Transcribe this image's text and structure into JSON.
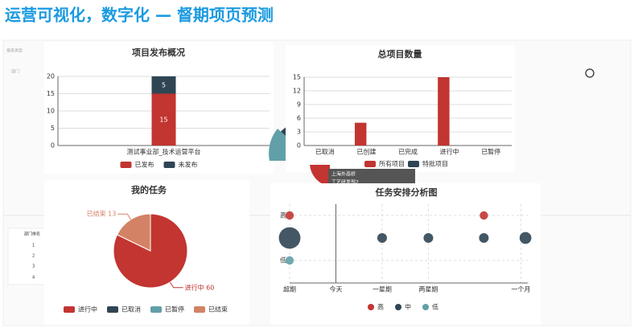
{
  "page_title": "运营可视化，数字化 — 督期项页预测",
  "background": {
    "labels": [
      "报表类型",
      "部门",
      "部门排名",
      "1",
      "2",
      "3",
      "4"
    ]
  },
  "tooltip": {
    "lines": [
      "上海外高桥",
      "工艺研发部2"
    ]
  },
  "chart_data": [
    {
      "type": "bar",
      "stacked": true,
      "title": "项目发布概况",
      "categories": [
        "测试事业部_技术运营平台"
      ],
      "series": [
        {
          "name": "已发布",
          "color": "#c23531",
          "values": [
            15
          ]
        },
        {
          "name": "未发布",
          "color": "#2f4554",
          "values": [
            5
          ]
        }
      ],
      "ylim": [
        0,
        20
      ],
      "yticks": [
        0,
        5,
        10,
        15,
        20
      ],
      "grid": true,
      "data_labels": true
    },
    {
      "type": "bar",
      "stacked": false,
      "title": "总项目数量",
      "categories": [
        "已取消",
        "已创建",
        "已完成",
        "进行中",
        "已暂停"
      ],
      "series": [
        {
          "name": "所有项目",
          "color": "#c23531",
          "values": [
            0,
            5,
            0,
            15,
            0
          ]
        },
        {
          "name": "特批项目",
          "color": "#2f4554",
          "values": [
            0,
            0,
            0,
            0,
            0
          ]
        }
      ],
      "ylim": [
        0,
        15
      ],
      "yticks": [
        0,
        3,
        6,
        9,
        12,
        15
      ],
      "grid": true,
      "data_labels": false
    },
    {
      "type": "pie",
      "title": "我的任务",
      "categories": [
        "进行中",
        "已取消",
        "已暂停",
        "已结束"
      ],
      "colors": [
        "#c23531",
        "#2f4554",
        "#61a0a8",
        "#d48265"
      ],
      "values": [
        60,
        0,
        0,
        13
      ],
      "value_labels": [
        "进行中 60",
        null,
        null,
        "已结束 13"
      ]
    },
    {
      "type": "scatter",
      "title": "任务安排分析图",
      "series": [
        {
          "name": "高",
          "color": "#c23531",
          "x": [
            0,
            4.2
          ],
          "values": [
            2,
            2
          ],
          "size": [
            3,
            3
          ]
        },
        {
          "name": "中",
          "color": "#2f4554",
          "x": [
            0,
            2,
            3,
            4.2,
            5.1
          ],
          "values": [
            1,
            1,
            1,
            1,
            1
          ],
          "size": [
            20,
            4,
            4,
            4,
            6
          ]
        },
        {
          "name": "低",
          "color": "#61a0a8",
          "x": [
            0
          ],
          "values": [
            0
          ],
          "size": [
            3
          ]
        }
      ],
      "xlim": [
        0,
        5.15
      ],
      "xticks": [
        {
          "value": 0,
          "label": "超期"
        },
        {
          "value": 1,
          "label": "今天"
        },
        {
          "value": 2,
          "label": "一星期"
        },
        {
          "value": 3,
          "label": "两星期"
        },
        {
          "value": 5,
          "label": "一个月"
        }
      ],
      "ylim": [
        -0.5,
        2.5
      ],
      "yticks": [
        {
          "value": 0,
          "label": "低"
        },
        {
          "value": 2,
          "label": "高"
        }
      ],
      "grid": true
    }
  ]
}
